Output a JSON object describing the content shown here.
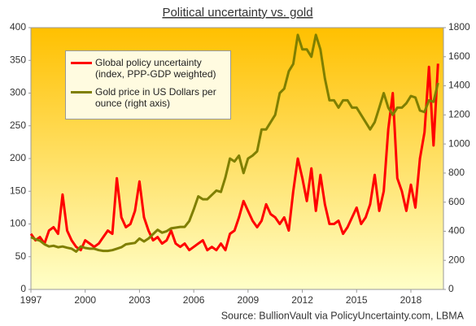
{
  "chart_data": {
    "type": "line",
    "title": "Political uncertainty  vs.  gold",
    "source": "Source: BullionVault via PolicyUncertainty.com, LBMA",
    "x": [
      1997,
      1997.25,
      1997.5,
      1997.75,
      1998,
      1998.25,
      1998.5,
      1998.75,
      1999,
      1999.25,
      1999.5,
      1999.75,
      2000,
      2000.25,
      2000.5,
      2000.75,
      2001,
      2001.25,
      2001.5,
      2001.75,
      2002,
      2002.25,
      2002.5,
      2002.75,
      2003,
      2003.25,
      2003.5,
      2003.75,
      2004,
      2004.25,
      2004.5,
      2004.75,
      2005,
      2005.25,
      2005.5,
      2005.75,
      2006,
      2006.25,
      2006.5,
      2006.75,
      2007,
      2007.25,
      2007.5,
      2007.75,
      2008,
      2008.25,
      2008.5,
      2008.75,
      2009,
      2009.25,
      2009.5,
      2009.75,
      2010,
      2010.25,
      2010.5,
      2010.75,
      2011,
      2011.25,
      2011.5,
      2011.75,
      2012,
      2012.25,
      2012.5,
      2012.75,
      2013,
      2013.25,
      2013.5,
      2013.75,
      2014,
      2014.25,
      2014.5,
      2014.75,
      2015,
      2015.25,
      2015.5,
      2015.75,
      2016,
      2016.25,
      2016.5,
      2016.75,
      2017,
      2017.25,
      2017.5,
      2017.75,
      2018,
      2018.25,
      2018.5,
      2018.75,
      2019,
      2019.25,
      2019.5
    ],
    "series": [
      {
        "name": "Global policy uncertainty (index, PPP-GDP weighted)",
        "color": "#ff0000",
        "axis": "y",
        "values": [
          85,
          75,
          80,
          70,
          90,
          95,
          85,
          145,
          90,
          75,
          65,
          60,
          75,
          70,
          65,
          70,
          80,
          90,
          85,
          170,
          110,
          95,
          100,
          120,
          165,
          110,
          90,
          75,
          80,
          70,
          75,
          90,
          70,
          65,
          70,
          60,
          65,
          70,
          75,
          60,
          65,
          60,
          70,
          60,
          85,
          90,
          110,
          135,
          120,
          105,
          95,
          105,
          130,
          115,
          110,
          100,
          110,
          90,
          150,
          200,
          170,
          135,
          185,
          120,
          175,
          130,
          100,
          100,
          105,
          85,
          95,
          110,
          125,
          100,
          110,
          130,
          175,
          120,
          150,
          245,
          300,
          170,
          150,
          120,
          160,
          125,
          200,
          240,
          340,
          220,
          345
        ]
      },
      {
        "name": "Gold price in US Dollars per ounce (right axis)",
        "color": "#7f7f00",
        "axis": "y2",
        "values": [
          360,
          345,
          335,
          310,
          295,
          300,
          290,
          295,
          287,
          280,
          260,
          295,
          285,
          280,
          280,
          270,
          265,
          265,
          270,
          280,
          290,
          310,
          315,
          320,
          350,
          330,
          350,
          380,
          410,
          390,
          400,
          420,
          425,
          430,
          430,
          470,
          550,
          640,
          620,
          620,
          650,
          680,
          670,
          770,
          900,
          880,
          920,
          800,
          900,
          920,
          950,
          1100,
          1100,
          1150,
          1200,
          1350,
          1380,
          1500,
          1550,
          1750,
          1650,
          1650,
          1600,
          1750,
          1650,
          1450,
          1300,
          1300,
          1250,
          1300,
          1300,
          1250,
          1250,
          1200,
          1150,
          1100,
          1150,
          1250,
          1350,
          1250,
          1200,
          1250,
          1250,
          1280,
          1330,
          1320,
          1230,
          1220,
          1300,
          1290,
          1420
        ]
      }
    ],
    "xlim": [
      1997,
      2019.8
    ],
    "xticks": [
      1997,
      2000,
      2003,
      2006,
      2009,
      2012,
      2015,
      2018
    ],
    "ylim": [
      0,
      400
    ],
    "yticks": [
      0,
      50,
      100,
      150,
      200,
      250,
      300,
      350,
      400
    ],
    "y2lim": [
      0,
      1800
    ],
    "y2ticks": [
      0,
      200,
      400,
      600,
      800,
      1000,
      1200,
      1400,
      1600,
      1800
    ],
    "legend": "upper left"
  }
}
